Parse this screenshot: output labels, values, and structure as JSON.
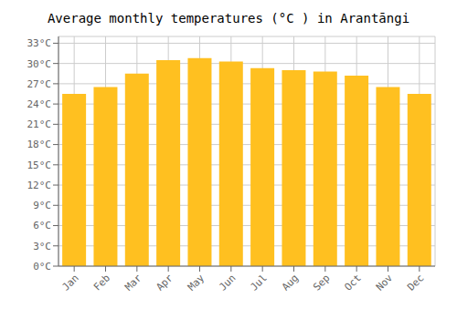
{
  "chart_data": {
    "type": "bar",
    "title": "Average monthly temperatures (°C ) in Arantāngi",
    "categories": [
      "Jan",
      "Feb",
      "Mar",
      "Apr",
      "May",
      "Jun",
      "Jul",
      "Aug",
      "Sep",
      "Oct",
      "Nov",
      "Dec"
    ],
    "values": [
      25.5,
      26.5,
      28.5,
      30.5,
      30.8,
      30.3,
      29.3,
      29.0,
      28.8,
      28.2,
      26.5,
      25.5
    ],
    "color": "#FFC020",
    "ylim": [
      0,
      34
    ],
    "yticks": [
      {
        "value": 0,
        "label": "0°C"
      },
      {
        "value": 3,
        "label": "3°C"
      },
      {
        "value": 6,
        "label": "6°C"
      },
      {
        "value": 9,
        "label": "9°C"
      },
      {
        "value": 12,
        "label": "12°C"
      },
      {
        "value": 15,
        "label": "15°C"
      },
      {
        "value": 18,
        "label": "18°C"
      },
      {
        "value": 21,
        "label": "21°C"
      },
      {
        "value": 24,
        "label": "24°C"
      },
      {
        "value": 27,
        "label": "27°C"
      },
      {
        "value": 30,
        "label": "30°C"
      },
      {
        "value": 33,
        "label": "33°C"
      }
    ],
    "grid": true
  }
}
